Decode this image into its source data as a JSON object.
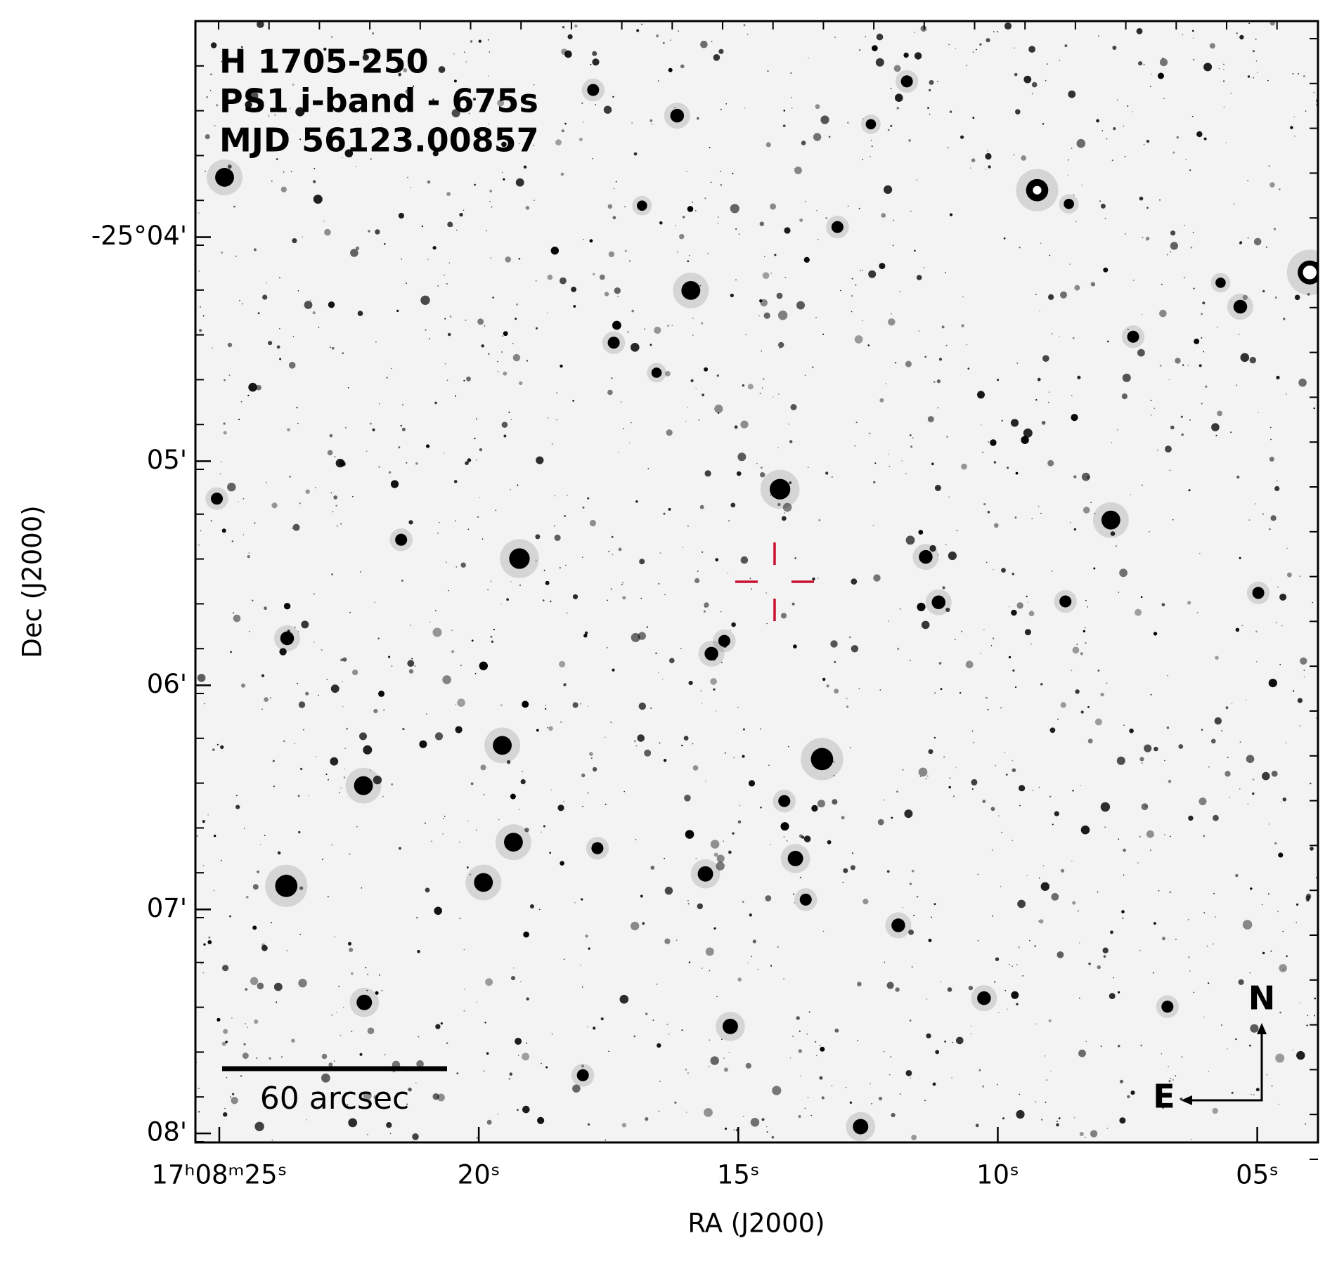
{
  "chart_data": {
    "type": "image",
    "title_lines": [
      "H 1705-250",
      "PS1 i-band - 675s",
      "MJD 56123.00857"
    ],
    "xlabel": "RA (J2000)",
    "ylabel": "Dec (J2000)",
    "xlim": [
      25.46,
      3.83
    ],
    "ylim": [
      -25.0506,
      -25.134
    ],
    "xticks": [
      {
        "value": 25,
        "label": "17ʰ08ᵐ25ˢ"
      },
      {
        "value": 20,
        "label": "20ˢ"
      },
      {
        "value": 15,
        "label": "15ˢ"
      },
      {
        "value": 10,
        "label": "10ˢ"
      },
      {
        "value": 5,
        "label": "05ˢ"
      }
    ],
    "yticks": [
      {
        "value": -25.06667,
        "label": "-25°04'"
      },
      {
        "value": -25.08333,
        "label": "05'"
      },
      {
        "value": -25.1,
        "label": "06'"
      },
      {
        "value": -25.11667,
        "label": "07'"
      },
      {
        "value": -25.13333,
        "label": "08'"
      }
    ],
    "target": {
      "x": 14.3,
      "y": -25.0923,
      "color": "#c8102e"
    },
    "scale_bar_label": "60 arcsec",
    "compass": {
      "north": "N",
      "east": "E"
    }
  }
}
